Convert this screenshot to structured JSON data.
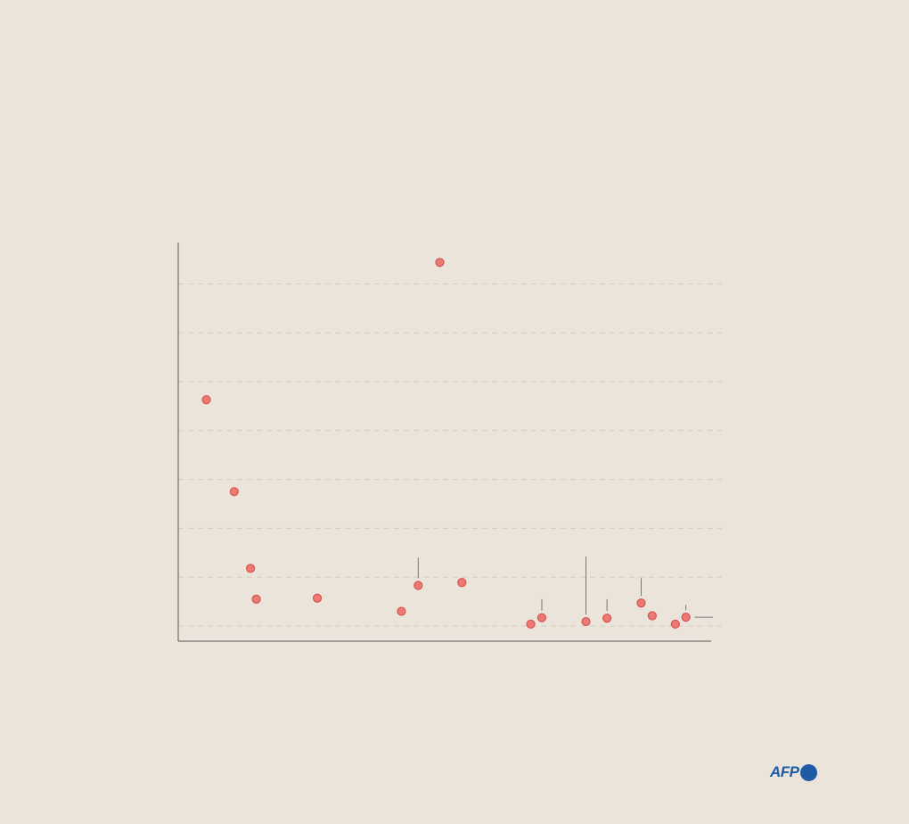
{
  "chart_data": {
    "type": "scatter",
    "title": "",
    "subtitle": "",
    "xlabel": "",
    "ylabel": "",
    "grid": true,
    "legend": "none",
    "xlim": [
      0,
      100
    ],
    "ylim": [
      0,
      8
    ],
    "yticks": [
      0,
      1,
      2,
      3,
      4,
      5,
      6,
      7
    ],
    "point_color": "#ec7a72",
    "point_stroke": "#d9534f",
    "points": [
      {
        "x": 4.5,
        "y": 4.63
      },
      {
        "x": 9.8,
        "y": 2.75
      },
      {
        "x": 12.9,
        "y": 1.18
      },
      {
        "x": 14.0,
        "y": 0.55
      },
      {
        "x": 25.6,
        "y": 0.57
      },
      {
        "x": 41.6,
        "y": 0.3
      },
      {
        "x": 44.8,
        "y": 0.83
      },
      {
        "x": 48.9,
        "y": 7.44
      },
      {
        "x": 53.1,
        "y": 0.89
      },
      {
        "x": 66.2,
        "y": 0.04
      },
      {
        "x": 68.3,
        "y": 0.17
      },
      {
        "x": 76.7,
        "y": 0.09
      },
      {
        "x": 80.7,
        "y": 0.16
      },
      {
        "x": 87.2,
        "y": 0.47
      },
      {
        "x": 89.3,
        "y": 0.21
      },
      {
        "x": 93.7,
        "y": 0.04
      },
      {
        "x": 95.7,
        "y": 0.18
      }
    ],
    "leaders": [
      {
        "point": 6,
        "to_y": 1.4
      },
      {
        "point": 10,
        "to_y": 0.55
      },
      {
        "point": 11,
        "to_y": 1.42
      },
      {
        "point": 12,
        "to_y": 0.55
      },
      {
        "point": 13,
        "to_y": 0.98
      },
      {
        "point": 16,
        "to_y": 0.43
      },
      {
        "point": 16,
        "to_x": 100
      }
    ]
  }
}
